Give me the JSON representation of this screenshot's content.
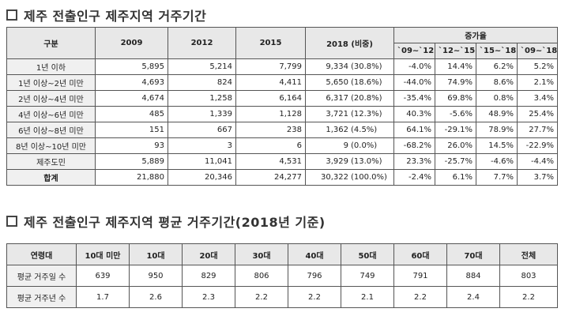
{
  "title1": "제주 전출인구 제주지역 거주기간",
  "title2": "제주 전출인구 제주지역 평균 거주기간(2018년 기준)",
  "table1": {
    "header_category": "구분",
    "years": [
      "2009",
      "2012",
      "2015",
      "2018 (비중)"
    ],
    "growth_group": "증가율",
    "growth_cols": [
      "`09~`12",
      "`12~`15",
      "`15~`18",
      "`09~`18"
    ],
    "rows": [
      {
        "label": "1년 이하",
        "v09": "5,895",
        "v12": "5,214",
        "v15": "7,799",
        "v18": "9,334",
        "share": "(30.8%)",
        "g1": "-4.0%",
        "g2": "14.4%",
        "g3": "6.2%",
        "g4": "5.2%"
      },
      {
        "label": "1년 이상~2년 미만",
        "v09": "4,693",
        "v12": "824",
        "v15": "4,411",
        "v18": "5,650",
        "share": "(18.6%)",
        "g1": "-44.0%",
        "g2": "74.9%",
        "g3": "8.6%",
        "g4": "2.1%"
      },
      {
        "label": "2년 이상~4년 미만",
        "v09": "4,674",
        "v12": "1,258",
        "v15": "6,164",
        "v18": "6,317",
        "share": "(20.8%)",
        "g1": "-35.4%",
        "g2": "69.8%",
        "g3": "0.8%",
        "g4": "3.4%"
      },
      {
        "label": "4년 이상~6년 미만",
        "v09": "485",
        "v12": "1,339",
        "v15": "1,128",
        "v18": "3,721",
        "share": "(12.3%)",
        "g1": "40.3%",
        "g2": "-5.6%",
        "g3": "48.9%",
        "g4": "25.4%"
      },
      {
        "label": "6년 이상~8년 미만",
        "v09": "151",
        "v12": "667",
        "v15": "238",
        "v18": "1,362",
        "share": "(4.5%)",
        "g1": "64.1%",
        "g2": "-29.1%",
        "g3": "78.9%",
        "g4": "27.7%"
      },
      {
        "label": "8년 이상~10년 미만",
        "v09": "93",
        "v12": "3",
        "v15": "6",
        "v18": "9",
        "share": "(0.0%)",
        "g1": "-68.2%",
        "g2": "26.0%",
        "g3": "14.5%",
        "g4": "-22.9%"
      },
      {
        "label": "제주도민",
        "v09": "5,889",
        "v12": "11,041",
        "v15": "4,531",
        "v18": "3,929",
        "share": "(13.0%)",
        "g1": "23.3%",
        "g2": "-25.7%",
        "g3": "-4.6%",
        "g4": "-4.4%"
      },
      {
        "label": "합계",
        "v09": "21,880",
        "v12": "20,346",
        "v15": "24,277",
        "v18": "30,322",
        "share": "(100.0%)",
        "g1": "-2.4%",
        "g2": "6.1%",
        "g3": "7.7%",
        "g4": "3.7%"
      }
    ]
  },
  "table2": {
    "header_label": "연령대",
    "ages": [
      "10대 미만",
      "10대",
      "20대",
      "30대",
      "40대",
      "50대",
      "60대",
      "70대",
      "전체"
    ],
    "row_days": {
      "label": "평균 거주일 수",
      "values": [
        "639",
        "950",
        "829",
        "806",
        "796",
        "749",
        "791",
        "884",
        "803"
      ]
    },
    "row_years": {
      "label": "평균 거주년 수",
      "values": [
        "1.7",
        "2.6",
        "2.3",
        "2.2",
        "2.2",
        "2.1",
        "2.2",
        "2.4",
        "2.2"
      ]
    }
  }
}
